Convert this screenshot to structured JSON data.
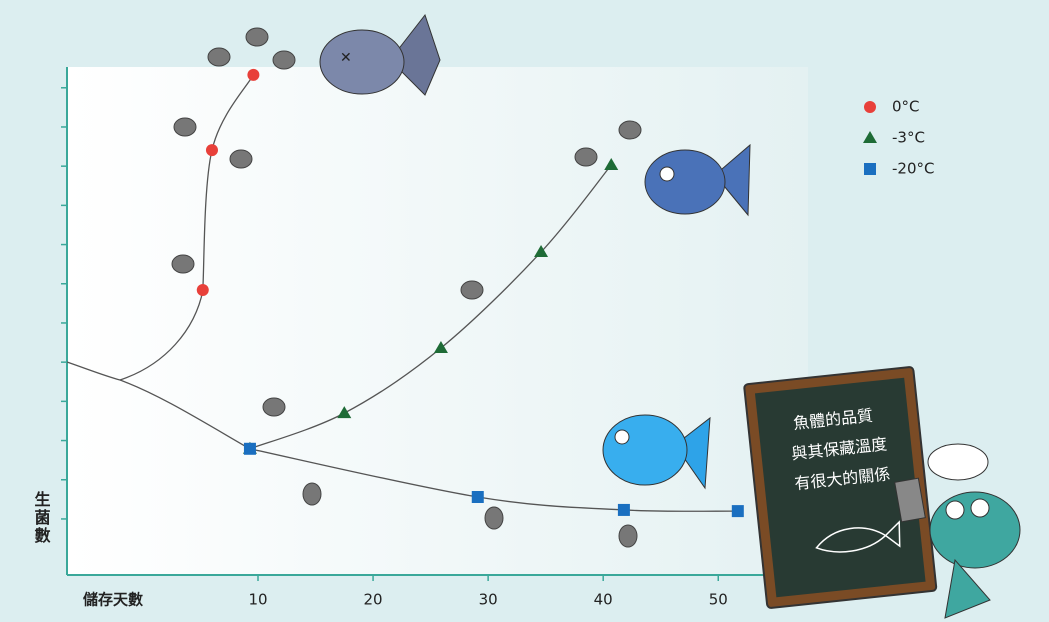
{
  "chart_data": {
    "type": "line",
    "x_label": "儲存天數",
    "y_label": "生菌數",
    "xlim": [
      -6.6,
      57.8
    ],
    "xticks": [
      10,
      20,
      30,
      40,
      50
    ],
    "ylim": [
      -0.43,
      12.53
    ],
    "yticks": [
      1,
      2,
      3,
      4,
      5,
      6,
      7,
      8,
      9,
      10,
      11,
      12
    ],
    "line_color": "#555555",
    "legend": "upper right",
    "series": [
      {
        "name": "0°C",
        "color": "#e8403a",
        "marker": "circle",
        "x": [
          5.2,
          6.0,
          9.6
        ],
        "values": [
          6.84,
          10.41,
          12.33
        ]
      },
      {
        "name": "-3°C",
        "color": "#1e6b36",
        "marker": "triangle",
        "x": [
          9.3,
          17.5,
          25.9,
          34.6,
          40.7
        ],
        "values": [
          2.79,
          3.7,
          5.36,
          7.81,
          10.03
        ]
      },
      {
        "name": "-20°C",
        "color": "#1a6fc0",
        "marker": "square",
        "x": [
          9.3,
          29.1,
          41.8,
          51.7
        ],
        "values": [
          2.79,
          1.56,
          1.23,
          1.2
        ]
      }
    ],
    "annotations": [
      "魚體的品質",
      "與其保藏溫度",
      "有很大的關係"
    ]
  }
}
